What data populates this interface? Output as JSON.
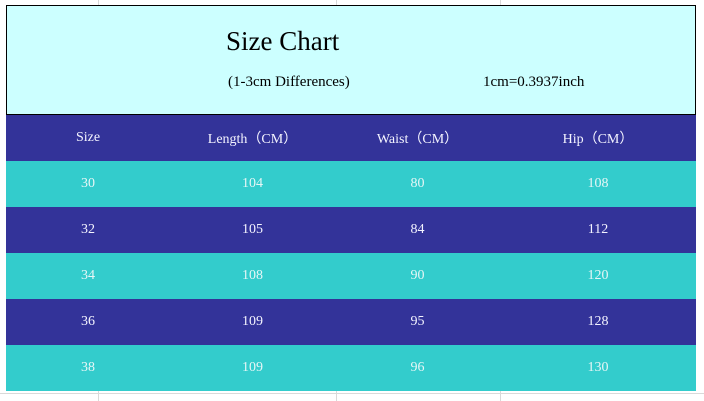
{
  "header": {
    "title": "Size Chart",
    "subtitle": "(1-3cm Differences)",
    "conversion": "1cm=0.3937inch"
  },
  "table": {
    "columns": [
      "Size",
      "Length（CM）",
      "Waist（CM）",
      "Hip（CM）"
    ],
    "rows": [
      [
        30,
        104,
        80,
        108
      ],
      [
        32,
        105,
        84,
        112
      ],
      [
        34,
        108,
        90,
        120
      ],
      [
        36,
        109,
        95,
        128
      ],
      [
        38,
        109,
        96,
        130
      ]
    ]
  }
}
